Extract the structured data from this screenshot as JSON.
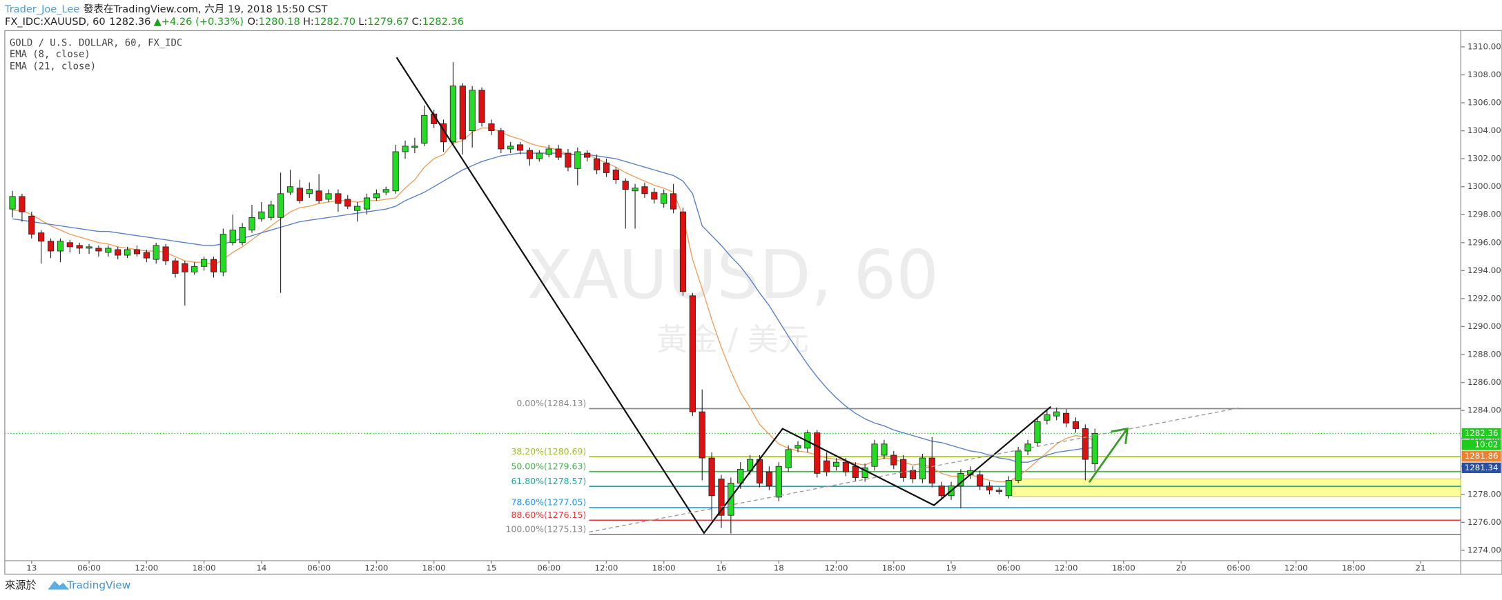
{
  "header": {
    "author": "Trader_Joe_Lee",
    "published": "發表在TradingView.com, 六月 19, 2018 15:50 CST",
    "symbol": "FX_IDC:XAUUSD, 60",
    "price": "1282.36",
    "change": "▲+4.26 (+0.33%)",
    "ohlc": [
      {
        "label": "O:",
        "value": "1280.18"
      },
      {
        "label": "H:",
        "value": "1282.70"
      },
      {
        "label": "L:",
        "value": "1279.67"
      },
      {
        "label": "C:",
        "value": "1282.36"
      }
    ]
  },
  "footer": {
    "source": "來源於",
    "brand": "TradingView"
  },
  "chart_data": {
    "type": "candlestick",
    "title": "GOLD / U.S. DOLLAR, 60, FX_IDC",
    "watermark": "XAUUSD, 60",
    "watermark_sub": "黃金 / 美元",
    "up_color": "#22dd22",
    "down_color": "#dd1111",
    "categories": [
      null,
      null,
      "13",
      null,
      null,
      null,
      null,
      null,
      "06:00",
      null,
      null,
      null,
      null,
      null,
      "12:00",
      null,
      null,
      null,
      null,
      null,
      "18:00",
      null,
      null,
      null,
      null,
      null,
      "14",
      null,
      null,
      null,
      null,
      null,
      "06:00",
      null,
      null,
      null,
      null,
      null,
      "12:00",
      null,
      null,
      null,
      null,
      null,
      "18:00",
      null,
      null,
      null,
      null,
      null,
      "15",
      null,
      null,
      null,
      null,
      null,
      "06:00",
      null,
      null,
      null,
      null,
      null,
      "12:00",
      null,
      null,
      null,
      null,
      null,
      "18:00",
      null,
      null,
      null,
      null,
      null,
      "16",
      null,
      null,
      null,
      null,
      null,
      "18",
      null,
      null,
      null,
      null,
      null,
      "12:00",
      null,
      null,
      null,
      null,
      null,
      "18:00",
      null,
      null,
      null,
      null,
      null,
      "19",
      null,
      null,
      null,
      null,
      null,
      "06:00",
      null,
      null,
      null,
      null,
      null,
      "12:00",
      null,
      null,
      null,
      null,
      null,
      "18:00",
      null,
      null,
      null,
      null,
      null,
      "20",
      null,
      null,
      null,
      null,
      null,
      "06:00",
      null,
      null,
      null,
      null,
      null,
      "12:00",
      null,
      null,
      null,
      null,
      null,
      "18:00",
      null,
      null,
      null,
      null,
      null,
      null,
      "21",
      null,
      null,
      null,
      null
    ],
    "open": [
      1298.4,
      1299.3,
      1297.9,
      1296.7,
      1296.1,
      1295.4,
      1296.0,
      1295.8,
      1295.6,
      1295.6,
      1295.3,
      1295.5,
      1295.1,
      1295.5,
      1295.3,
      1294.8,
      1295.7,
      1294.7,
      1294.5,
      1293.9,
      1294.3,
      1294.8,
      1293.9,
      1296.0,
      1296.0,
      1296.9,
      1297.7,
      1297.8,
      1297.8,
      1299.6,
      1299.9,
      1299.5,
      1299.7,
      1299.1,
      1299.5,
      1299.1,
      1298.3,
      1298.4,
      1299.2,
      1299.6,
      1299.7,
      1302.5,
      1302.8,
      1303.1,
      1305.2,
      1304.5,
      1303.2,
      1307.2,
      1304.0,
      1306.9,
      1304.5,
      1304.0,
      1302.7,
      1303.0,
      1302.6,
      1302.0,
      1302.3,
      1302.7,
      1302.4,
      1301.3,
      1302.4,
      1302.0,
      1301.7,
      1301.2,
      1300.4,
      1299.7,
      1300.0,
      1299.6,
      1298.8,
      1299.5,
      1298.2,
      1292.2,
      1283.9,
      1280.6,
      1279.1,
      1276.5,
      1278.8,
      1279.7,
      1280.5,
      1279.6,
      1277.8,
      1279.9,
      1281.3,
      1281.3,
      1282.4,
      1280.4,
      1280.0,
      1280.3,
      1280.0,
      1279.2,
      1280.0,
      1280.8,
      1280.8,
      1280.5,
      1279.7,
      1279.1,
      1280.6,
      1278.6,
      1277.9,
      1278.6,
      1279.4,
      1279.4,
      1278.6,
      1278.3,
      1277.9,
      1279.0,
      1281.1,
      1281.7,
      1283.3,
      1283.6,
      1283.8,
      1283.2,
      1282.7,
      1280.18,
      null,
      null,
      null,
      null,
      null,
      null,
      null,
      null,
      null,
      null,
      null,
      null,
      null,
      null,
      null,
      null,
      null,
      null,
      null,
      null,
      null,
      null,
      null,
      null,
      null,
      null,
      null,
      null,
      null,
      null,
      null,
      null,
      null,
      null,
      null,
      null,
      null,
      null
    ],
    "high": [
      1299.7,
      1299.5,
      1298.2,
      1296.9,
      1296.3,
      1296.3,
      1296.2,
      1296.0,
      1295.9,
      1295.8,
      1295.8,
      1295.7,
      1295.7,
      1295.8,
      1295.5,
      1296.0,
      1295.9,
      1294.9,
      1294.7,
      1294.6,
      1295.0,
      1295.0,
      1297.0,
      1298.0,
      1297.4,
      1298.7,
      1298.9,
      1299.0,
      1301.0,
      1301.2,
      1300.5,
      1300.3,
      1300.9,
      1299.8,
      1299.8,
      1299.4,
      1298.9,
      1299.5,
      1299.8,
      1300.0,
      1303.0,
      1303.3,
      1303.5,
      1305.8,
      1305.5,
      1304.8,
      1308.9,
      1307.4,
      1307.2,
      1307.1,
      1304.8,
      1304.2,
      1303.2,
      1303.2,
      1302.8,
      1302.6,
      1303.0,
      1303.0,
      1302.7,
      1302.8,
      1302.6,
      1302.3,
      1302.0,
      1301.4,
      1300.6,
      1300.2,
      1300.3,
      1299.9,
      1299.8,
      1300.2,
      1298.5,
      1292.4,
      1285.5,
      1281.0,
      1279.4,
      1279.2,
      1280.3,
      1280.8,
      1280.8,
      1280.0,
      1280.3,
      1281.5,
      1281.8,
      1282.6,
      1282.6,
      1281.0,
      1280.6,
      1280.6,
      1280.3,
      1280.2,
      1281.9,
      1281.9,
      1281.1,
      1280.8,
      1280.0,
      1280.9,
      1282.1,
      1278.9,
      1278.9,
      1279.8,
      1280.0,
      1279.7,
      1278.9,
      1278.5,
      1279.3,
      1281.4,
      1281.9,
      1283.5,
      1284.0,
      1284.2,
      1284.1,
      1283.5,
      1283.0,
      1282.7,
      null,
      null,
      null,
      null,
      null,
      null,
      null,
      null,
      null,
      null,
      null,
      null,
      null,
      null,
      null,
      null,
      null,
      null,
      null,
      null,
      null,
      null,
      null,
      null,
      null,
      null,
      null,
      null,
      null,
      null,
      null,
      null,
      null,
      null,
      null,
      null,
      null,
      null
    ],
    "low": [
      1297.8,
      1297.5,
      1296.3,
      1294.5,
      1294.9,
      1294.6,
      1295.3,
      1295.2,
      1295.2,
      1295.0,
      1295.0,
      1294.8,
      1294.9,
      1295.0,
      1294.6,
      1294.5,
      1294.4,
      1293.5,
      1291.5,
      1293.7,
      1294.0,
      1293.5,
      1293.6,
      1295.8,
      1295.8,
      1296.7,
      1297.5,
      1297.6,
      1292.4,
      1299.4,
      1298.8,
      1299.2,
      1298.8,
      1298.9,
      1298.2,
      1298.4,
      1297.5,
      1298.0,
      1299.0,
      1299.4,
      1299.5,
      1302.0,
      1302.4,
      1302.9,
      1304.2,
      1302.5,
      1303.0,
      1302.3,
      1302.8,
      1304.3,
      1303.7,
      1302.4,
      1302.4,
      1302.3,
      1301.5,
      1301.8,
      1302.1,
      1301.9,
      1301.1,
      1300.1,
      1301.8,
      1300.9,
      1300.7,
      1300.2,
      1297.0,
      1297.0,
      1299.2,
      1298.8,
      1298.5,
      1298.1,
      1292.2,
      1283.6,
      1279.0,
      1276.2,
      1275.6,
      1275.2,
      1278.4,
      1279.4,
      1278.5,
      1278.3,
      1277.5,
      1279.6,
      1281.0,
      1281.0,
      1279.2,
      1279.3,
      1279.7,
      1279.3,
      1278.9,
      1278.9,
      1279.7,
      1280.5,
      1279.8,
      1278.9,
      1278.8,
      1278.8,
      1278.5,
      1277.6,
      1277.6,
      1277.0,
      1279.1,
      1278.3,
      1278.0,
      1278.0,
      1277.7,
      1278.8,
      1280.8,
      1281.4,
      1283.0,
      1283.3,
      1282.8,
      1282.4,
      1279.0,
      1279.67,
      null,
      null,
      null,
      null,
      null,
      null,
      null,
      null,
      null,
      null,
      null,
      null,
      null,
      null,
      null,
      null,
      null,
      null,
      null,
      null,
      null,
      null,
      null,
      null,
      null,
      null,
      null,
      null,
      null,
      null,
      null,
      null,
      null,
      null,
      null,
      null,
      null,
      null
    ],
    "close": [
      1299.3,
      1298.2,
      1296.6,
      1296.1,
      1295.4,
      1296.1,
      1295.7,
      1295.6,
      1295.7,
      1295.4,
      1295.6,
      1295.1,
      1295.5,
      1295.2,
      1294.9,
      1295.8,
      1294.7,
      1293.8,
      1293.9,
      1294.3,
      1294.8,
      1293.9,
      1296.6,
      1296.9,
      1297.1,
      1297.8,
      1298.2,
      1298.7,
      1299.5,
      1300.0,
      1299.0,
      1299.8,
      1299.0,
      1299.5,
      1298.8,
      1298.6,
      1298.6,
      1299.2,
      1299.5,
      1299.8,
      1302.5,
      1302.9,
      1302.9,
      1305.1,
      1304.5,
      1303.2,
      1307.2,
      1303.4,
      1306.9,
      1304.6,
      1304.0,
      1302.7,
      1302.9,
      1302.6,
      1302.0,
      1302.4,
      1302.7,
      1302.1,
      1301.4,
      1302.5,
      1302.1,
      1301.2,
      1301.0,
      1300.5,
      1299.8,
      1299.9,
      1299.5,
      1299.1,
      1299.5,
      1298.4,
      1292.5,
      1283.9,
      1280.6,
      1277.9,
      1276.5,
      1278.8,
      1279.8,
      1280.5,
      1278.8,
      1278.6,
      1280.0,
      1281.2,
      1281.5,
      1282.4,
      1279.5,
      1279.6,
      1280.3,
      1279.6,
      1279.2,
      1279.9,
      1281.6,
      1281.6,
      1280.1,
      1279.2,
      1279.1,
      1280.6,
      1278.8,
      1277.9,
      1278.6,
      1279.5,
      1279.7,
      1278.6,
      1278.3,
      1278.2,
      1279.0,
      1281.1,
      1281.6,
      1283.2,
      1283.7,
      1283.9,
      1283.1,
      1282.7,
      1280.5,
      1282.36,
      null,
      null,
      null,
      null,
      null,
      null,
      null,
      null,
      null,
      null,
      null,
      null,
      null,
      null,
      null,
      null,
      null,
      null,
      null,
      null,
      null,
      null,
      null,
      null,
      null,
      null,
      null,
      null,
      null,
      null,
      null,
      null,
      null,
      null,
      null,
      null,
      null,
      null
    ],
    "overlays": [
      {
        "name": "EMA (8, close)",
        "color": "#f0a060",
        "values": [
          1298.3,
          1298.3,
          1298.0,
          1297.6,
          1297.2,
          1296.9,
          1296.6,
          1296.4,
          1296.2,
          1296.0,
          1295.9,
          1295.7,
          1295.6,
          1295.5,
          1295.4,
          1295.4,
          1295.3,
          1295.0,
          1294.7,
          1294.6,
          1294.6,
          1294.4,
          1294.8,
          1295.3,
          1295.7,
          1296.2,
          1296.7,
          1297.2,
          1297.7,
          1298.2,
          1298.5,
          1298.6,
          1298.8,
          1298.9,
          1299.0,
          1299.0,
          1298.9,
          1299.0,
          1299.0,
          1299.1,
          1299.2,
          1299.9,
          1300.5,
          1301.4,
          1302.0,
          1302.3,
          1303.1,
          1303.3,
          1303.9,
          1304.2,
          1304.2,
          1303.9,
          1303.6,
          1303.4,
          1303.1,
          1302.9,
          1302.8,
          1302.6,
          1302.3,
          1302.3,
          1302.3,
          1302.0,
          1301.7,
          1301.4,
          1301.0,
          1300.7,
          1300.4,
          1300.1,
          1299.9,
          1299.6,
          1297.9,
          1294.8,
          1292.7,
          1290.5,
          1288.5,
          1286.8,
          1285.3,
          1284.2,
          1283.0,
          1282.3,
          1281.6,
          1281.3,
          1281.1,
          1281.0,
          1280.8,
          1280.6,
          1280.5,
          1280.4,
          1280.2,
          1280.1,
          1280.4,
          1280.6,
          1280.5,
          1280.3,
          1280.1,
          1280.2,
          1279.9,
          1279.5,
          1279.3,
          1279.3,
          1279.4,
          1279.2,
          1279.0,
          1278.9,
          1278.9,
          1279.3,
          1279.8,
          1280.4,
          1281.0,
          1281.6,
          1282.0,
          1282.2,
          1282.1,
          1281.86,
          null,
          null,
          null,
          null,
          null,
          null,
          null,
          null,
          null,
          null,
          null,
          null,
          null,
          null,
          null,
          null,
          null,
          null,
          null,
          null,
          null,
          null,
          null,
          null,
          null,
          null,
          null,
          null,
          null,
          null,
          null,
          null,
          null,
          null,
          null,
          null,
          null,
          null
        ]
      },
      {
        "name": "EMA (21, close)",
        "color": "#5b7fc7",
        "values": [
          1297.7,
          1297.6,
          1297.5,
          1297.4,
          1297.3,
          1297.2,
          1297.1,
          1297.0,
          1296.9,
          1296.8,
          1296.8,
          1296.7,
          1296.6,
          1296.5,
          1296.4,
          1296.3,
          1296.2,
          1296.1,
          1296.0,
          1295.9,
          1295.8,
          1295.8,
          1295.9,
          1296.1,
          1296.3,
          1296.5,
          1296.7,
          1296.9,
          1297.1,
          1297.3,
          1297.5,
          1297.6,
          1297.7,
          1297.8,
          1297.9,
          1298.0,
          1298.1,
          1298.2,
          1298.3,
          1298.4,
          1298.6,
          1299.0,
          1299.3,
          1299.6,
          1300.0,
          1300.4,
          1300.8,
          1301.2,
          1301.5,
          1301.8,
          1302.0,
          1302.2,
          1302.3,
          1302.4,
          1302.4,
          1302.4,
          1302.4,
          1302.4,
          1302.3,
          1302.3,
          1302.3,
          1302.2,
          1302.1,
          1302.0,
          1301.8,
          1301.6,
          1301.4,
          1301.2,
          1301.0,
          1300.8,
          1300.4,
          1299.5,
          1297.2,
          1296.5,
          1295.8,
          1295.0,
          1294.3,
          1293.4,
          1292.4,
          1291.5,
          1290.4,
          1289.3,
          1288.3,
          1287.3,
          1286.4,
          1285.6,
          1284.9,
          1284.3,
          1283.8,
          1283.4,
          1283.1,
          1282.9,
          1282.6,
          1282.4,
          1282.2,
          1282.0,
          1281.8,
          1281.7,
          1281.5,
          1281.3,
          1281.1,
          1281.0,
          1280.8,
          1280.6,
          1280.5,
          1280.3,
          1280.3,
          1280.5,
          1280.8,
          1281.0,
          1281.1,
          1281.2,
          1281.3,
          1281.34,
          null,
          null,
          null,
          null,
          null,
          null,
          null,
          null,
          null,
          null,
          null,
          null,
          null,
          null,
          null,
          null,
          null,
          null,
          null,
          null,
          null,
          null,
          null,
          null,
          null,
          null,
          null,
          null,
          null,
          null,
          null,
          null,
          null,
          null,
          null,
          null,
          null,
          null
        ]
      }
    ],
    "ylim": [
      1273.25,
      1311.16
    ],
    "yticks": [
      {
        "value": 1274,
        "label": "1274.00"
      },
      {
        "value": 1276,
        "label": "1276.00"
      },
      {
        "value": 1278,
        "label": "1278.00"
      },
      {
        "value": 1280,
        "label": "1280.00"
      },
      {
        "value": 1282,
        "label": "1282.00"
      },
      {
        "value": 1284,
        "label": "1284.00"
      },
      {
        "value": 1286,
        "label": "1286.00"
      },
      {
        "value": 1288,
        "label": "1288.00"
      },
      {
        "value": 1290,
        "label": "1290.00"
      },
      {
        "value": 1292,
        "label": "1292.00"
      },
      {
        "value": 1294,
        "label": "1294.00"
      },
      {
        "value": 1296,
        "label": "1296.00"
      },
      {
        "value": 1298,
        "label": "1298.00"
      },
      {
        "value": 1300,
        "label": "1300.00"
      },
      {
        "value": 1302,
        "label": "1302.00"
      },
      {
        "value": 1304,
        "label": "1304.00"
      },
      {
        "value": 1306,
        "label": "1306.00"
      },
      {
        "value": 1308,
        "label": "1308.00"
      },
      {
        "value": 1310,
        "label": "1310.00"
      }
    ],
    "fib_levels": [
      {
        "label": "0.00%(1284.13)",
        "value": 1284.13,
        "color": "#888888"
      },
      {
        "label": "38.20%(1280.69)",
        "value": 1280.69,
        "color": "#9fbf2f"
      },
      {
        "label": "50.00%(1279.63)",
        "value": 1279.63,
        "color": "#4caf50"
      },
      {
        "label": "61.80%(1278.57)",
        "value": 1278.57,
        "color": "#26a69a"
      },
      {
        "label": "78.60%(1277.05)",
        "value": 1277.05,
        "color": "#2196f3"
      },
      {
        "label": "88.60%(1276.15)",
        "value": 1276.15,
        "color": "#e53935"
      },
      {
        "label": "100.00%(1275.13)",
        "value": 1275.13,
        "color": "#888888"
      }
    ],
    "zone": {
      "high": 1279.1,
      "low": 1277.85
    },
    "last_price": 1282.36,
    "last_price_color": "#1ecb1e",
    "countdown": "10:02",
    "price_tags": [
      {
        "value": 1281.86,
        "color": "#f08030"
      },
      {
        "value": 1281.34,
        "color": "#2a4fa0"
      }
    ]
  }
}
